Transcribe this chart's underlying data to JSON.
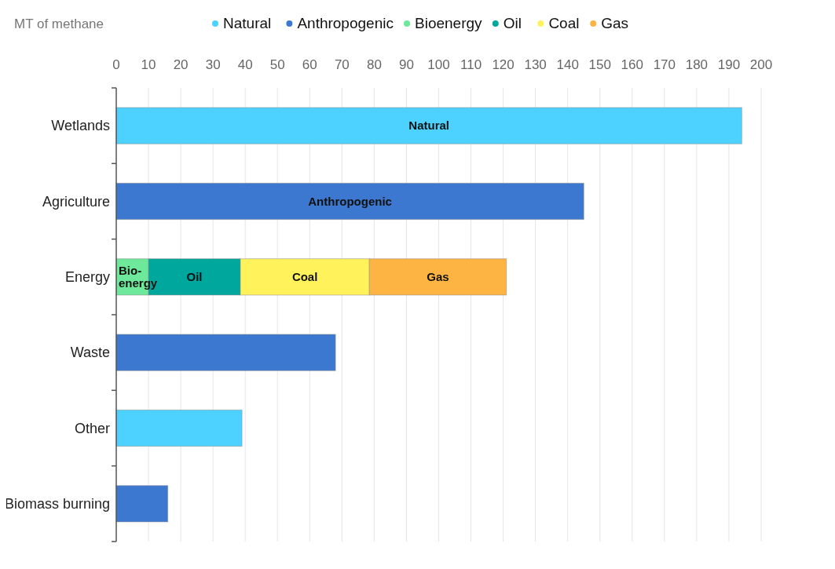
{
  "chart_data": {
    "type": "bar",
    "orientation": "horizontal",
    "stacked": true,
    "xlabel": "MT of methane",
    "categories": [
      "Wetlands",
      "Agriculture",
      "Energy",
      "Waste",
      "Other",
      "Biomass burning"
    ],
    "series": [
      {
        "name": "Natural",
        "color": "#4dd2ff",
        "values": [
          194,
          null,
          null,
          null,
          39,
          null
        ]
      },
      {
        "name": "Anthropogenic",
        "color": "#3d78d0",
        "values": [
          null,
          145,
          null,
          68,
          null,
          16
        ]
      },
      {
        "name": "Bioenergy",
        "color": "#6ee89a",
        "values": [
          null,
          null,
          10,
          null,
          null,
          null
        ]
      },
      {
        "name": "Oil",
        "color": "#00a79d",
        "values": [
          null,
          null,
          28.5,
          null,
          null,
          null
        ]
      },
      {
        "name": "Coal",
        "color": "#fff25a",
        "values": [
          null,
          null,
          40,
          null,
          null,
          null
        ]
      },
      {
        "name": "Gas",
        "color": "#fdb443",
        "values": [
          null,
          null,
          42.5,
          null,
          null,
          null
        ]
      }
    ],
    "xlim": [
      0,
      200
    ],
    "xticks": [
      0,
      10,
      20,
      30,
      40,
      50,
      60,
      70,
      80,
      90,
      100,
      110,
      120,
      130,
      140,
      150,
      160,
      170,
      180,
      190,
      200
    ],
    "grid": "x",
    "legend": "top",
    "annotations": [
      "Natural",
      "Anthropogenic",
      "Bio-energy",
      "Oil",
      "Coal",
      "Gas"
    ]
  }
}
